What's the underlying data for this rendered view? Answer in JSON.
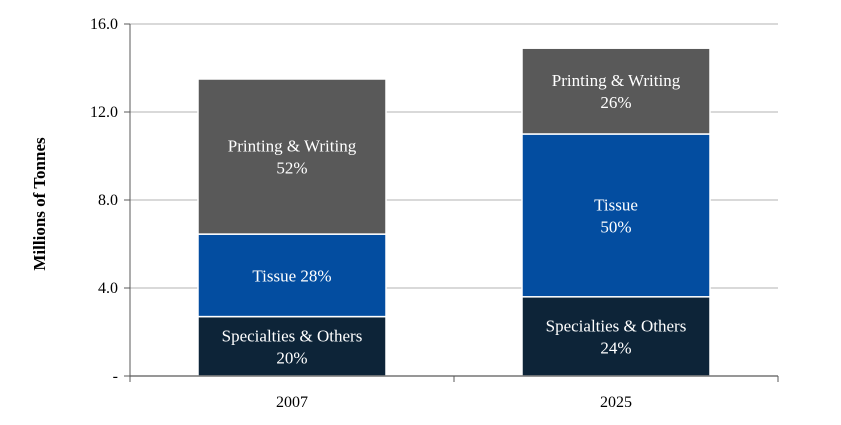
{
  "chart_data": {
    "type": "bar",
    "stacked": true,
    "categories": [
      "2007",
      "2025"
    ],
    "ylabel": "Millions of Tonnes",
    "ylim": [
      0,
      16
    ],
    "yticks": [
      "-",
      "4.0",
      "8.0",
      "12.0",
      "16.0"
    ],
    "ytick_values": [
      0,
      4,
      8,
      12,
      16
    ],
    "grid": true,
    "series": [
      {
        "name": "Specialties & Others",
        "color": "#0d2438",
        "values": [
          2.7,
          3.6
        ],
        "labels": [
          [
            "Specialties & Others",
            "20%"
          ],
          [
            "Specialties & Others",
            "24%"
          ]
        ]
      },
      {
        "name": "Tissue",
        "color": "#034da0",
        "values": [
          3.75,
          7.4
        ],
        "labels": [
          [
            "Tissue 28%"
          ],
          [
            "Tissue",
            "50%"
          ]
        ]
      },
      {
        "name": "Printing & Writing",
        "color": "#595959",
        "values": [
          7.05,
          3.9
        ],
        "labels": [
          [
            "Printing & Writing",
            "52%"
          ],
          [
            "Printing & Writing",
            "26%"
          ]
        ]
      }
    ]
  }
}
